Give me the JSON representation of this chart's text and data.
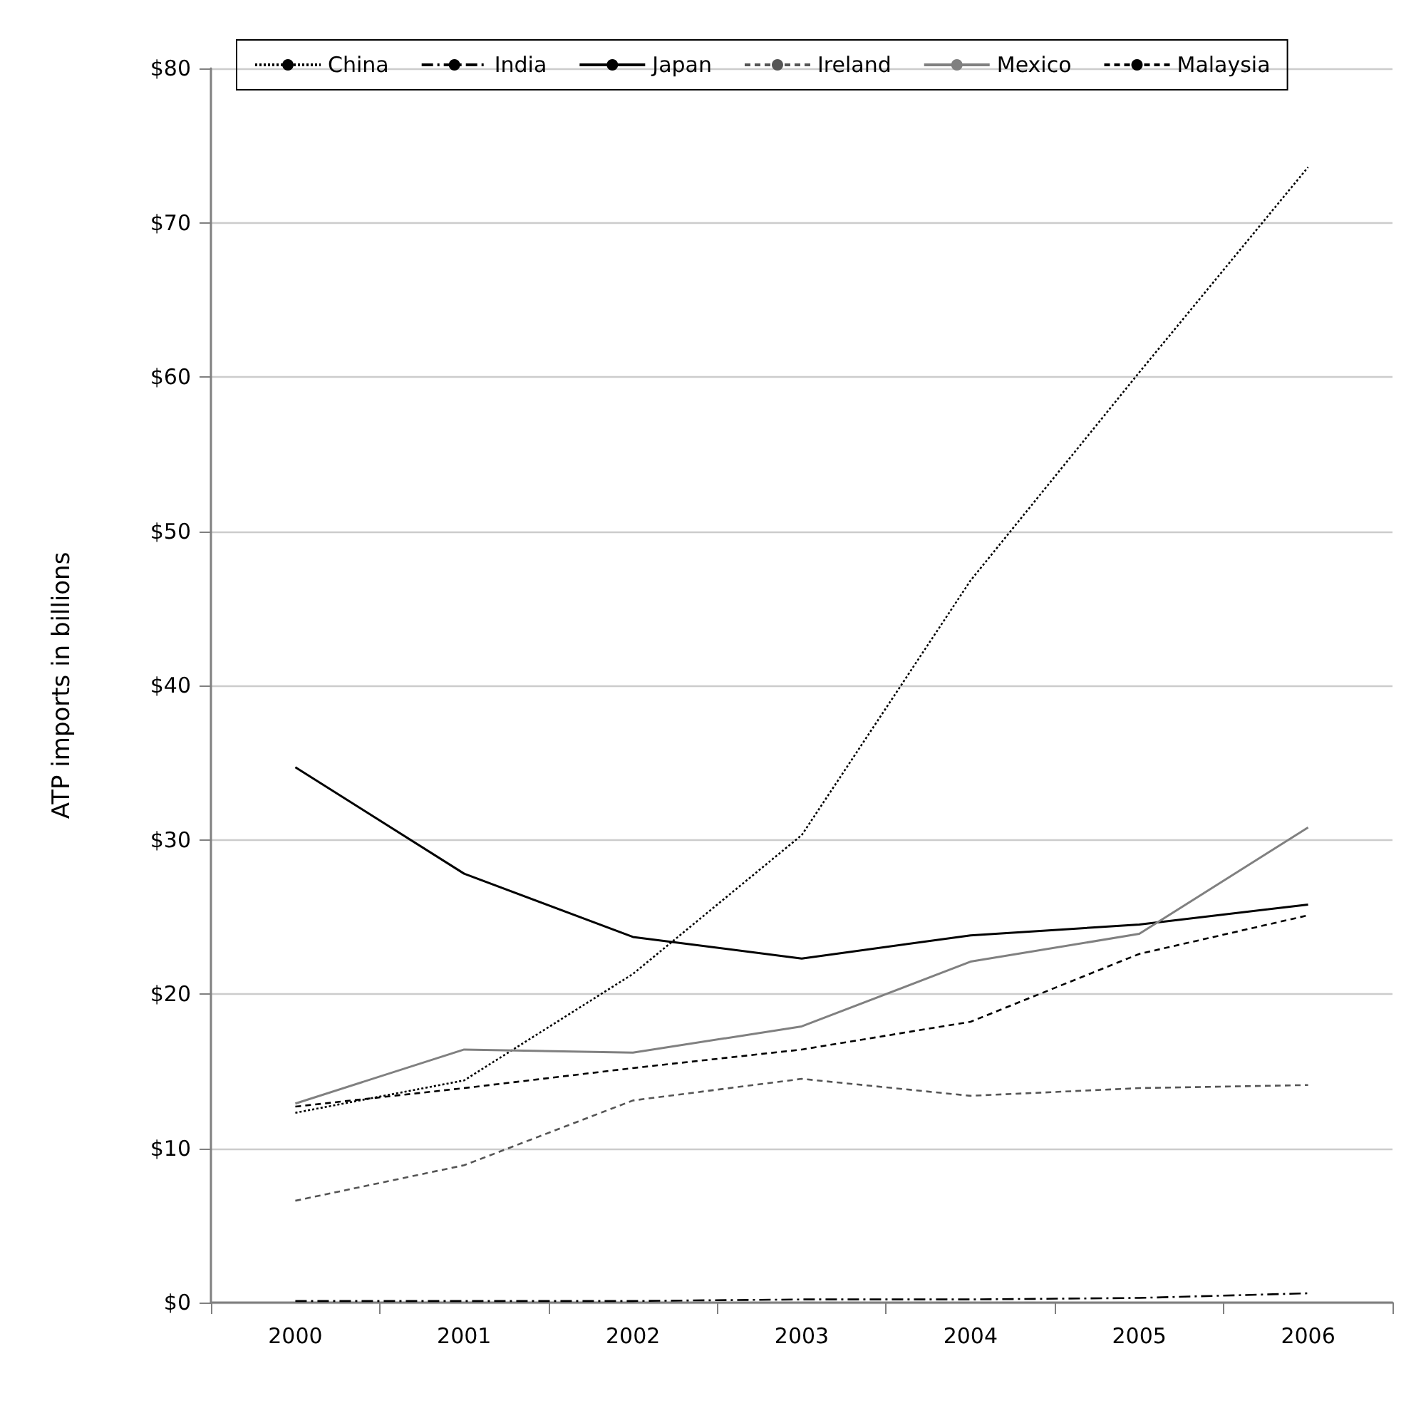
{
  "chart_data": {
    "type": "line",
    "ylabel": "ATP imports in billions",
    "categories": [
      "2000",
      "2001",
      "2002",
      "2003",
      "2004",
      "2005",
      "2006"
    ],
    "series": [
      {
        "name": "China",
        "color": "#000000",
        "line_style": "dotted",
        "values": [
          12.3,
          14.4,
          21.3,
          30.3,
          46.8,
          60.3,
          73.6
        ]
      },
      {
        "name": "India",
        "color": "#000000",
        "line_style": "dashdot",
        "values": [
          0.1,
          0.1,
          0.1,
          0.2,
          0.2,
          0.3,
          0.6
        ]
      },
      {
        "name": "Japan",
        "color": "#000000",
        "line_style": "solid",
        "values": [
          34.7,
          27.8,
          23.7,
          22.3,
          23.8,
          24.5,
          25.8
        ]
      },
      {
        "name": "Ireland",
        "color": "#555555",
        "line_style": "dashed",
        "values": [
          6.6,
          8.9,
          13.1,
          14.5,
          13.4,
          13.9,
          14.1
        ]
      },
      {
        "name": "Mexico",
        "color": "#808080",
        "line_style": "solid",
        "values": [
          12.9,
          16.4,
          16.2,
          17.9,
          22.1,
          23.9,
          30.8
        ]
      },
      {
        "name": "Malaysia",
        "color": "#000000",
        "line_style": "dashed",
        "values": [
          12.7,
          13.9,
          15.2,
          16.4,
          18.2,
          22.6,
          25.1
        ]
      }
    ],
    "ylim": [
      0,
      80
    ],
    "yticks": [
      {
        "value": 0,
        "label": "$0"
      },
      {
        "value": 10,
        "label": "$10"
      },
      {
        "value": 20,
        "label": "$20"
      },
      {
        "value": 30,
        "label": "$30"
      },
      {
        "value": 40,
        "label": "$40"
      },
      {
        "value": 50,
        "label": "$50"
      },
      {
        "value": 60,
        "label": "$60"
      },
      {
        "value": 70,
        "label": "$70"
      },
      {
        "value": 80,
        "label": "$80"
      }
    ],
    "grid": "y",
    "legend": "top",
    "marker": "none"
  }
}
